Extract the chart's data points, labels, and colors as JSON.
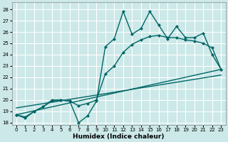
{
  "xlabel": "Humidex (Indice chaleur)",
  "background_color": "#cce8e8",
  "grid_color": "#ffffff",
  "line_color": "#006666",
  "xlim": [
    -0.5,
    23.5
  ],
  "ylim": [
    17.8,
    28.6
  ],
  "xticks": [
    0,
    1,
    2,
    3,
    4,
    5,
    6,
    7,
    8,
    9,
    10,
    11,
    12,
    13,
    14,
    15,
    16,
    17,
    18,
    19,
    20,
    21,
    22,
    23
  ],
  "yticks": [
    18,
    19,
    20,
    21,
    22,
    23,
    24,
    25,
    26,
    27,
    28
  ],
  "line1_x": [
    0,
    1,
    2,
    3,
    4,
    5,
    6,
    7,
    8,
    9,
    10,
    11,
    12,
    13,
    14,
    15,
    16,
    17,
    18,
    19,
    20,
    21,
    22,
    23
  ],
  "line1_y": [
    18.7,
    18.4,
    19.0,
    19.4,
    20.0,
    20.0,
    19.9,
    18.0,
    18.6,
    19.9,
    24.7,
    25.4,
    27.8,
    25.8,
    26.3,
    27.8,
    26.6,
    25.4,
    26.5,
    25.5,
    25.5,
    25.9,
    24.0,
    22.7
  ],
  "line2_x": [
    0,
    1,
    2,
    3,
    4,
    5,
    6,
    7,
    8,
    9,
    10,
    11,
    12,
    13,
    14,
    15,
    16,
    17,
    18,
    19,
    20,
    21,
    22,
    23
  ],
  "line2_y": [
    18.7,
    18.5,
    19.0,
    19.4,
    19.9,
    20.0,
    19.9,
    19.5,
    19.7,
    20.0,
    22.3,
    23.0,
    24.2,
    24.9,
    25.3,
    25.6,
    25.7,
    25.5,
    25.5,
    25.3,
    25.2,
    25.0,
    24.6,
    22.7
  ],
  "line3_x": [
    0,
    23
  ],
  "line3_y": [
    18.7,
    22.7
  ],
  "line4_x": [
    0,
    23
  ],
  "line4_y": [
    19.3,
    22.2
  ],
  "marker_size": 2.5,
  "line_width": 1.0
}
